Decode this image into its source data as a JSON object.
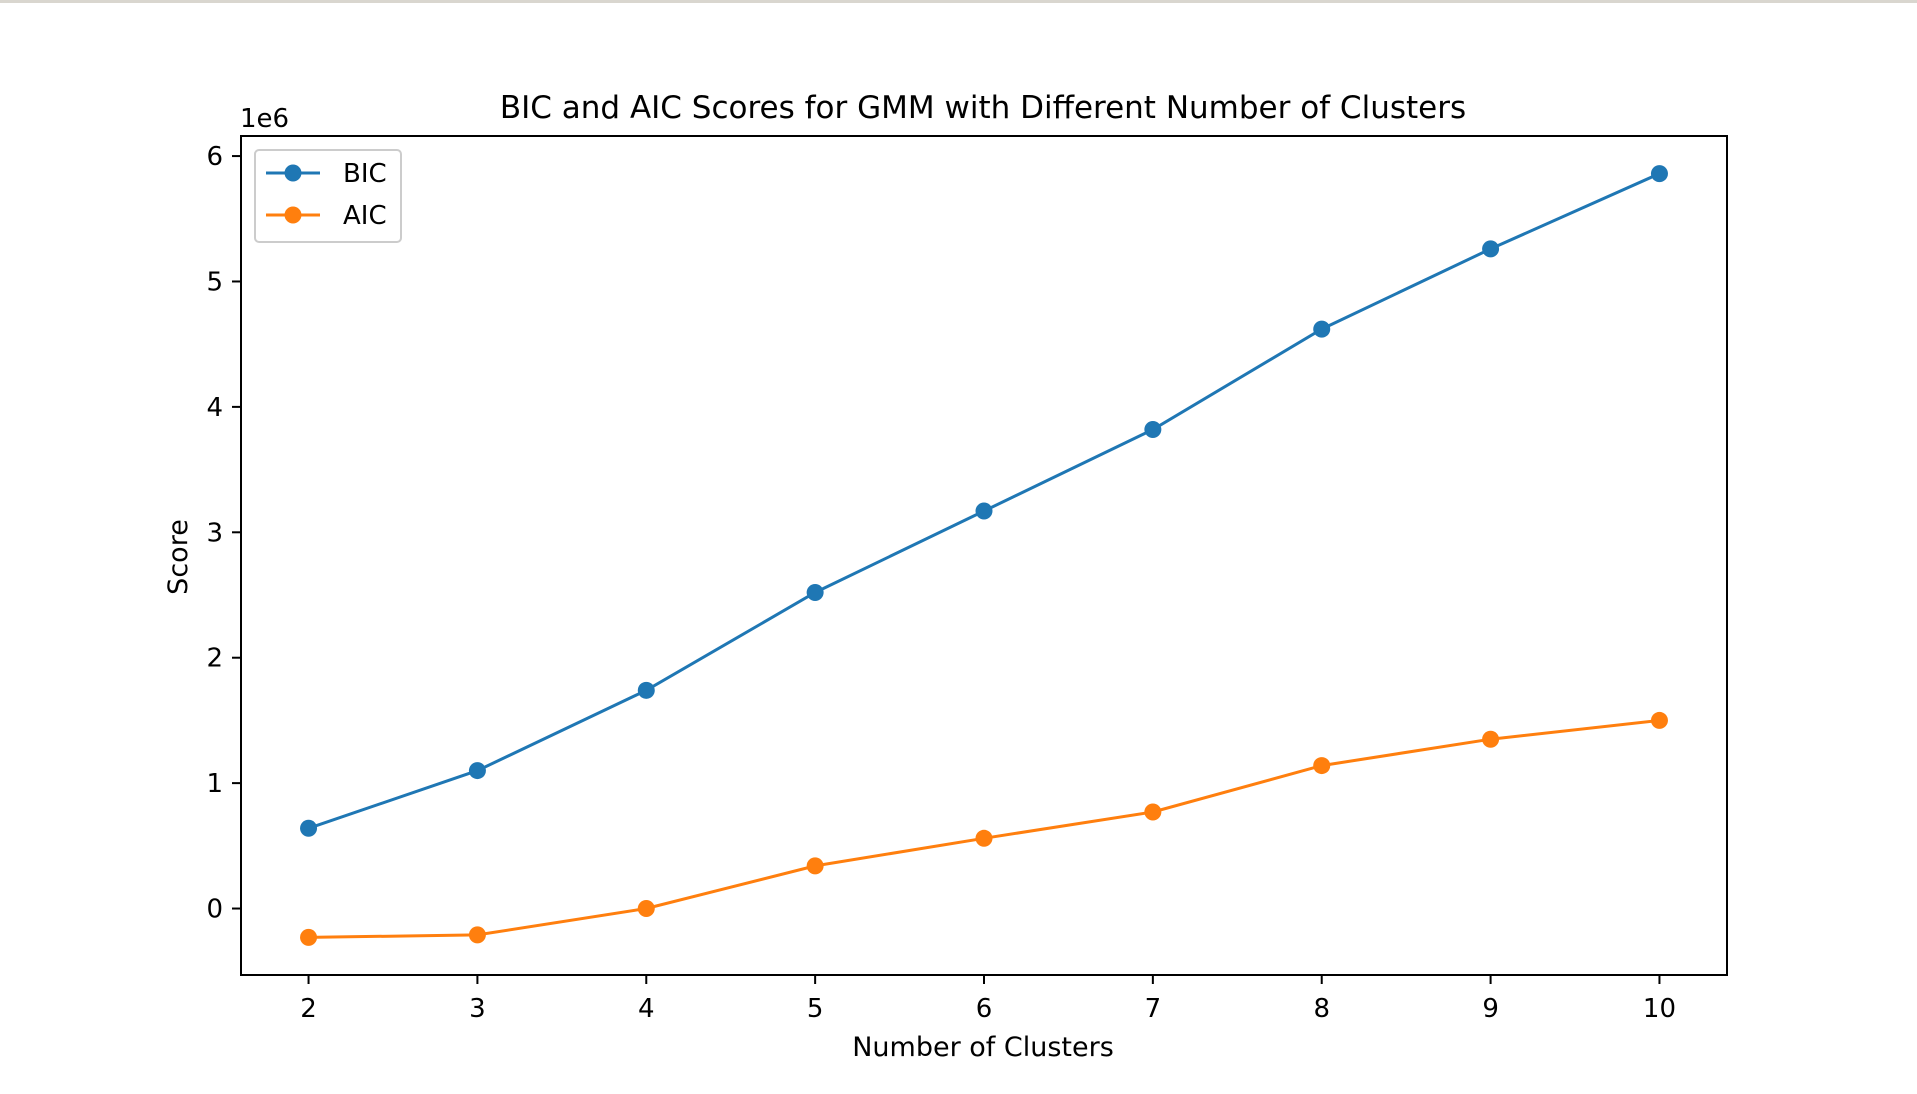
{
  "chart_data": {
    "type": "line",
    "title": "BIC and AIC Scores for GMM with Different Number of Clusters",
    "xlabel": "Number of Clusters",
    "ylabel": "Score",
    "y_offset_label": "1e6",
    "y_scale": 1000000,
    "x": [
      2,
      3,
      4,
      5,
      6,
      7,
      8,
      9,
      10
    ],
    "xlim": [
      1.6,
      10.4
    ],
    "ylim": [
      -530000,
      6160000
    ],
    "x_ticks": [
      2,
      3,
      4,
      5,
      6,
      7,
      8,
      9,
      10
    ],
    "y_ticks": [
      0,
      1000000,
      2000000,
      3000000,
      4000000,
      5000000,
      6000000
    ],
    "y_tick_labels": [
      "0",
      "1",
      "2",
      "3",
      "4",
      "5",
      "6"
    ],
    "grid": false,
    "legend_position": "top-left",
    "series": [
      {
        "name": "BIC",
        "color": "#1f77b4",
        "marker": "circle",
        "values": [
          640000,
          1100000,
          1740000,
          2520000,
          3170000,
          3820000,
          4620000,
          5260000,
          5860000
        ]
      },
      {
        "name": "AIC",
        "color": "#ff7f0e",
        "marker": "circle",
        "values": [
          -230000,
          -210000,
          0,
          340000,
          560000,
          770000,
          1140000,
          1350000,
          1500000
        ]
      }
    ]
  }
}
